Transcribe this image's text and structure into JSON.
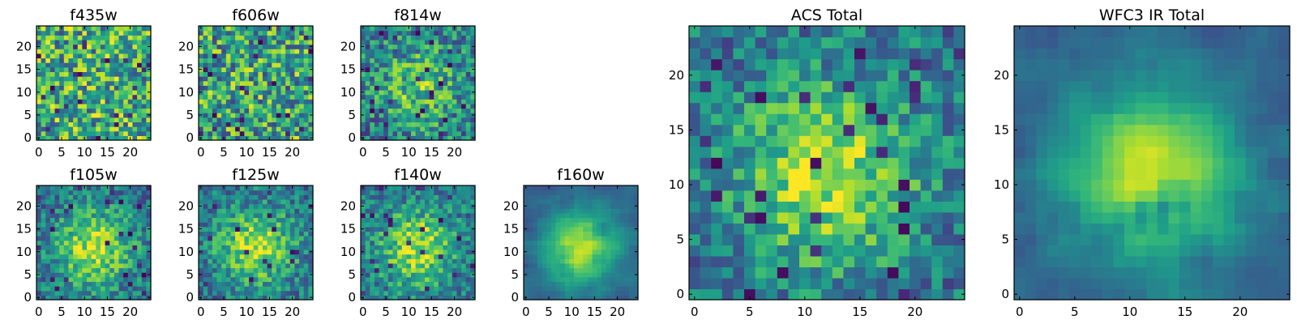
{
  "chart_data": {
    "type": "heatmap",
    "colormap": "viridis",
    "grid_size": 25,
    "panels": [
      {
        "id": "f435w",
        "title": "f435w",
        "xticks": [
          "0",
          "5",
          "10",
          "15",
          "20"
        ],
        "yticks": [
          "0",
          "5",
          "10",
          "15",
          "20"
        ],
        "pattern": "noise",
        "brightness": 0.62
      },
      {
        "id": "f606w",
        "title": "f606w",
        "xticks": [
          "0",
          "5",
          "10",
          "15",
          "20"
        ],
        "yticks": [
          "0",
          "5",
          "10",
          "15",
          "20"
        ],
        "pattern": "noise",
        "brightness": 0.58
      },
      {
        "id": "f814w",
        "title": "f814w",
        "xticks": [
          "0",
          "5",
          "10",
          "15",
          "20"
        ],
        "yticks": [
          "0",
          "5",
          "10",
          "15",
          "20"
        ],
        "pattern": "noise-center",
        "brightness": 0.6
      },
      {
        "id": "f105w",
        "title": "f105w",
        "xticks": [
          "0",
          "5",
          "10",
          "15",
          "20"
        ],
        "yticks": [
          "0",
          "5",
          "10",
          "15",
          "20"
        ],
        "pattern": "blob",
        "brightness": 0.6
      },
      {
        "id": "f125w",
        "title": "f125w",
        "xticks": [
          "0",
          "5",
          "10",
          "15",
          "20"
        ],
        "yticks": [
          "0",
          "5",
          "10",
          "15",
          "20"
        ],
        "pattern": "blob",
        "brightness": 0.6
      },
      {
        "id": "f140w",
        "title": "f140w",
        "xticks": [
          "0",
          "5",
          "10",
          "15",
          "20"
        ],
        "yticks": [
          "0",
          "5",
          "10",
          "15",
          "20"
        ],
        "pattern": "blob",
        "brightness": 0.6
      },
      {
        "id": "f160w",
        "title": "f160w",
        "xticks": [
          "0",
          "5",
          "10",
          "15",
          "20"
        ],
        "yticks": [
          "0",
          "5",
          "10",
          "15",
          "20"
        ],
        "pattern": "smooth-blob",
        "brightness": 0.55
      },
      {
        "id": "acs_total",
        "title": "ACS Total",
        "xticks": [
          "0",
          "5",
          "10",
          "15",
          "20"
        ],
        "yticks": [
          "0",
          "5",
          "10",
          "15",
          "20"
        ],
        "pattern": "blob",
        "brightness": 0.62
      },
      {
        "id": "wfc3_ir_total",
        "title": "WFC3 IR Total",
        "xticks": [
          "0",
          "5",
          "10",
          "15",
          "20"
        ],
        "yticks": [
          "0",
          "5",
          "10",
          "15",
          "20"
        ],
        "pattern": "smooth-blob",
        "brightness": 0.55
      }
    ]
  }
}
